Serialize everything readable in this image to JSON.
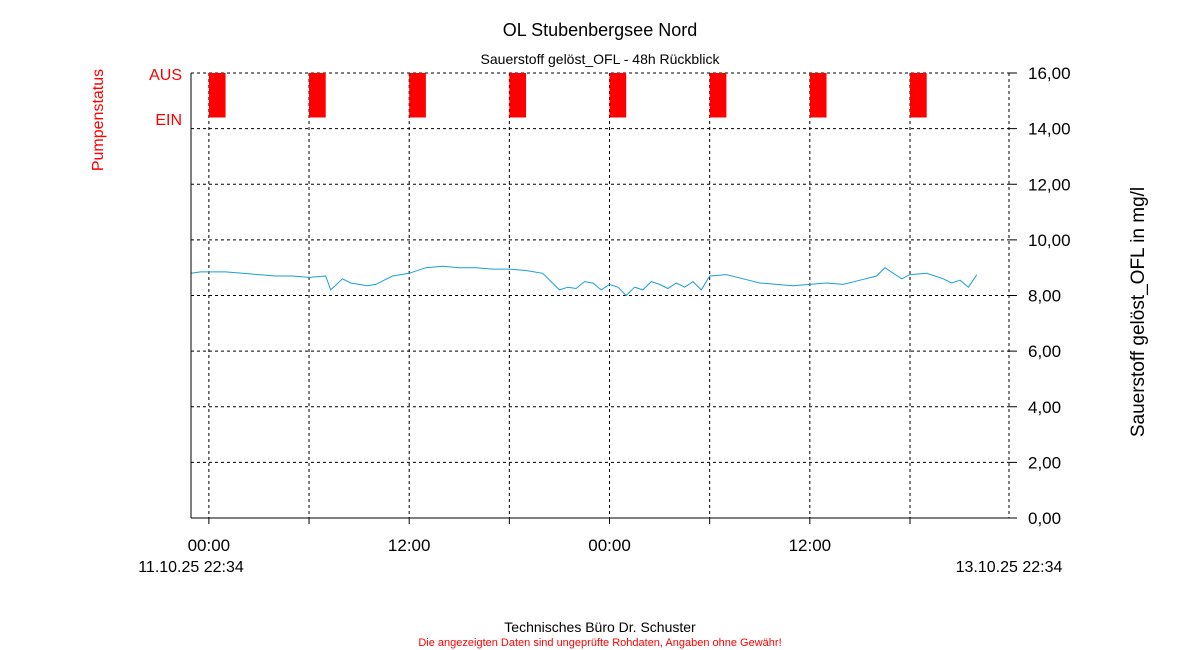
{
  "chart_data": {
    "type": "line",
    "title": "OL Stubenbergsee Nord",
    "subtitle": "Sauerstoff gelöst_OFL - 48h Rückblick",
    "ylabel_right": "Sauerstoff gelöst_OFL in mg/l",
    "ylabel_left": "Pumpenstatus",
    "pump_labels": [
      "AUS",
      "EIN"
    ],
    "ylim": [
      0,
      16
    ],
    "yticks": [
      "16,00",
      "14,00",
      "12,00",
      "10,00",
      "8,00",
      "6,00",
      "4,00",
      "2,00",
      "0,00"
    ],
    "ytick_values": [
      16,
      14,
      12,
      10,
      8,
      6,
      4,
      2,
      0
    ],
    "xlim_hours": [
      -1.07,
      47.93
    ],
    "start_label": "11.10.25 22:34",
    "end_label": "13.10.25 22:34",
    "xtick_labels": [
      {
        "hour": 0,
        "label": "00:00"
      },
      {
        "hour": 12,
        "label": "12:00"
      },
      {
        "hour": 24,
        "label": "00:00"
      },
      {
        "hour": 36,
        "label": "12:00"
      }
    ],
    "gridline_hours": [
      0,
      6,
      12,
      18,
      24,
      30,
      36,
      42
    ],
    "grid": true,
    "pump_on_intervals_hours": [
      [
        0.0,
        1.0
      ],
      [
        6.0,
        7.0
      ],
      [
        12.0,
        13.0
      ],
      [
        18.0,
        19.0
      ],
      [
        24.0,
        25.0
      ],
      [
        30.0,
        31.0
      ],
      [
        36.0,
        37.0
      ],
      [
        42.0,
        43.0
      ]
    ],
    "series": [
      {
        "color": "#1a9fd8",
        "x": [
          -1.07,
          -0.5,
          0,
          1,
          2,
          3,
          4,
          5,
          6,
          7,
          7.3,
          8,
          8.5,
          9,
          9.5,
          10,
          10.5,
          11,
          12,
          13,
          14,
          15,
          16,
          17,
          18,
          19,
          20,
          21,
          21.5,
          22,
          22.5,
          23,
          23.5,
          24,
          24.5,
          25,
          25.5,
          26,
          26.5,
          27,
          27.5,
          28,
          28.5,
          29,
          29.5,
          30,
          31,
          32,
          33,
          34,
          35,
          36,
          37,
          38,
          39,
          40,
          40.5,
          41,
          41.5,
          42,
          43,
          44,
          44.5,
          45,
          45.5,
          46
        ],
        "y": [
          8.8,
          8.85,
          8.85,
          8.85,
          8.8,
          8.75,
          8.7,
          8.7,
          8.65,
          8.7,
          8.2,
          8.6,
          8.45,
          8.4,
          8.35,
          8.4,
          8.55,
          8.7,
          8.8,
          9.0,
          9.05,
          9.0,
          9.0,
          8.95,
          8.95,
          8.9,
          8.8,
          8.2,
          8.3,
          8.25,
          8.5,
          8.45,
          8.2,
          8.4,
          8.3,
          8.0,
          8.3,
          8.2,
          8.5,
          8.4,
          8.25,
          8.45,
          8.3,
          8.5,
          8.2,
          8.7,
          8.75,
          8.6,
          8.45,
          8.4,
          8.35,
          8.4,
          8.45,
          8.4,
          8.55,
          8.7,
          9.0,
          8.8,
          8.6,
          8.75,
          8.8,
          8.6,
          8.45,
          8.55,
          8.3,
          8.75
        ]
      }
    ]
  },
  "footer": {
    "credit": "Technisches Büro Dr. Schuster",
    "disclaimer": "Die angezeigten Daten sind ungeprüfte Rohdaten, Angaben ohne Gewähr!"
  }
}
